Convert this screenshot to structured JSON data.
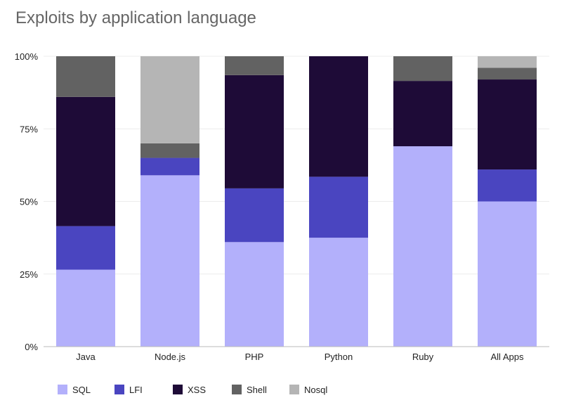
{
  "chart_data": {
    "type": "bar",
    "stacked": true,
    "title": "Exploits by application language",
    "xlabel": "",
    "ylabel": "",
    "ylim": [
      0,
      100
    ],
    "yticks": [
      {
        "value": 0,
        "label": "0%"
      },
      {
        "value": 25,
        "label": "25%"
      },
      {
        "value": 50,
        "label": "50%"
      },
      {
        "value": 75,
        "label": "75%"
      },
      {
        "value": 100,
        "label": "100%"
      }
    ],
    "grid": true,
    "legend_position": "bottom",
    "categories": [
      "Java",
      "Node.js",
      "PHP",
      "Python",
      "Ruby",
      "All Apps"
    ],
    "series": [
      {
        "name": "SQL",
        "color": "#b3b0fb",
        "values": [
          26.5,
          59,
          36,
          37.5,
          69,
          50
        ]
      },
      {
        "name": "LFI",
        "color": "#4a45c0",
        "values": [
          15,
          6,
          18.5,
          21,
          0,
          11
        ]
      },
      {
        "name": "XSS",
        "color": "#1e0b37",
        "values": [
          44.5,
          0,
          39,
          41.5,
          22.5,
          31
        ]
      },
      {
        "name": "Shell",
        "color": "#626262",
        "values": [
          14,
          5,
          6.5,
          0,
          8.5,
          4
        ]
      },
      {
        "name": "Nosql",
        "color": "#b5b5b5",
        "values": [
          0,
          30,
          0,
          0,
          0,
          4
        ]
      }
    ]
  }
}
